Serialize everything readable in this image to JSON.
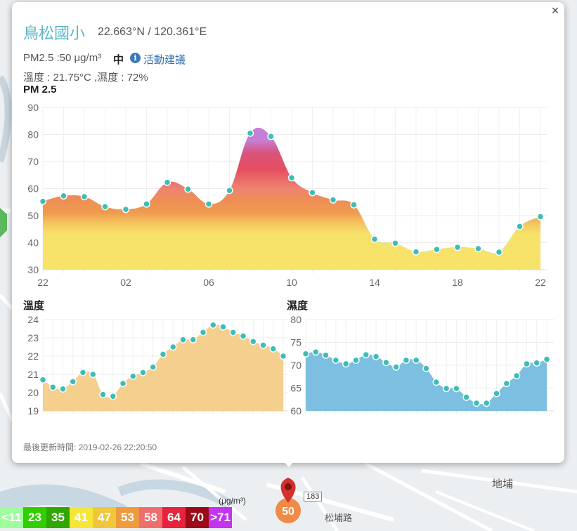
{
  "popup": {
    "close_label": "×",
    "station_name": "鳥松國小",
    "coords": "22.663°N / 120.361°E",
    "pm_line": "PM2.5 :50 μg/m³",
    "pm_level": "中",
    "info_icon_glyph": "i",
    "advice_link": "活動建議",
    "weather_line": "溫度 : 21.75°C ,濕度 : 72%",
    "pm_title": "PM 2.5",
    "temp_title": "溫度",
    "humidity_title": "濕度",
    "updated": "最後更新時間: 2019-02-26 22:20:50"
  },
  "map": {
    "district_label": "地埔",
    "road_label": "松埔路",
    "route_badge": "183",
    "marker_value": "50",
    "marker_color": "#f08a48"
  },
  "legend": {
    "unit": "(μg/m³)",
    "items": [
      {
        "label": "<11",
        "color": "#9cff9c"
      },
      {
        "label": "23",
        "color": "#31cf00"
      },
      {
        "label": "35",
        "color": "#30a600"
      },
      {
        "label": "41",
        "color": "#f5e637"
      },
      {
        "label": "47",
        "color": "#f2c63b"
      },
      {
        "label": "53",
        "color": "#ef9a3b"
      },
      {
        "label": "58",
        "color": "#ee6e6e"
      },
      {
        "label": "64",
        "color": "#e8223c"
      },
      {
        "label": "70",
        "color": "#9c0a18"
      },
      {
        "label": ">71",
        "color": "#c433f0"
      }
    ]
  },
  "chart_data": [
    {
      "type": "area",
      "title": "PM 2.5",
      "x": [
        "22",
        "23",
        "00",
        "01",
        "02",
        "03",
        "04",
        "05",
        "06",
        "07",
        "08",
        "09",
        "10",
        "11",
        "12",
        "13",
        "14",
        "15",
        "16",
        "17",
        "18",
        "19",
        "20",
        "21",
        "22"
      ],
      "tick_labels": [
        "22",
        "02",
        "06",
        "10",
        "14",
        "18",
        "22"
      ],
      "values": [
        55.3,
        57.3,
        57,
        53.3,
        52.3,
        54.3,
        62.3,
        59.8,
        54.3,
        59.3,
        80.5,
        79.3,
        64,
        58.5,
        55.8,
        54,
        41.3,
        39.8,
        36.6,
        37.5,
        38.3,
        37.8,
        36.5,
        46,
        49.6
      ],
      "ylim": [
        30,
        90
      ],
      "yticks": [
        30,
        40,
        50,
        60,
        70,
        80,
        90
      ],
      "grid": true,
      "point_color": "#3dbdb5"
    },
    {
      "type": "area",
      "title": "溫度",
      "x": [
        "22",
        "23",
        "00",
        "01",
        "02",
        "03",
        "04",
        "05",
        "06",
        "07",
        "08",
        "09",
        "10",
        "11",
        "12",
        "13",
        "14",
        "15",
        "16",
        "17",
        "18",
        "19",
        "20",
        "21",
        "22"
      ],
      "values": [
        20.7,
        20.3,
        20.2,
        20.6,
        21.1,
        21,
        19.9,
        19.8,
        20.5,
        20.9,
        21.1,
        21.4,
        22.1,
        22.5,
        22.9,
        22.9,
        23.3,
        23.7,
        23.6,
        23.3,
        23.1,
        22.8,
        22.6,
        22.4,
        22
      ],
      "ylim": [
        19,
        24
      ],
      "yticks": [
        19,
        20,
        21,
        22,
        23,
        24
      ],
      "grid": true,
      "fill_color": "#f5cf8e",
      "point_color": "#3dbdb5"
    },
    {
      "type": "area",
      "title": "濕度",
      "x": [
        "22",
        "23",
        "00",
        "01",
        "02",
        "03",
        "04",
        "05",
        "06",
        "07",
        "08",
        "09",
        "10",
        "11",
        "12",
        "13",
        "14",
        "15",
        "16",
        "17",
        "18",
        "19",
        "20",
        "21",
        "22"
      ],
      "values": [
        72.5,
        72.9,
        72.2,
        71.1,
        70.3,
        71.1,
        72.3,
        71.9,
        70.6,
        69.6,
        71.1,
        71.1,
        69.3,
        66.3,
        64.9,
        64.9,
        63,
        61.7,
        61.7,
        63.8,
        66,
        67.7,
        70.3,
        70.5,
        71.3
      ],
      "ylim": [
        60,
        80
      ],
      "yticks": [
        60,
        65,
        70,
        75,
        80
      ],
      "grid": true,
      "fill_color": "#7cbfe0",
      "point_color": "#3dbdb5"
    }
  ]
}
